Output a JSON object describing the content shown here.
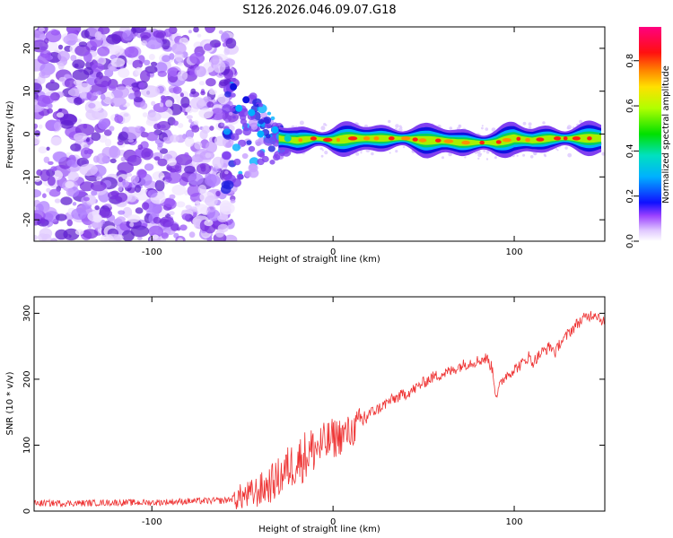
{
  "title": "S126.2026.046.09.07.G18",
  "chart_data": [
    {
      "type": "heatmap",
      "name": "spectrogram",
      "xlabel": "Height of straight line (km)",
      "ylabel": "Frequency (Hz)",
      "xlim": [
        -165,
        150
      ],
      "ylim": [
        -25,
        25
      ],
      "xticks": [
        -100,
        0,
        100
      ],
      "yticks": [
        -20,
        -10,
        0,
        10,
        20
      ],
      "ridge": {
        "x": [
          -30,
          -20,
          -10,
          0,
          10,
          20,
          30,
          40,
          50,
          60,
          70,
          80,
          90,
          100,
          110,
          120,
          130,
          140,
          148
        ],
        "freq": [
          -1,
          -1.5,
          -1,
          -1.5,
          -1,
          -1,
          -1,
          -1,
          -1.5,
          -1.5,
          -2,
          -2,
          -2,
          -1,
          -1.5,
          -1,
          -1,
          -1,
          -1
        ]
      },
      "colorbar": {
        "label": "Normalized spectral amplitude",
        "ticks": [
          0.0,
          0.2,
          0.4,
          0.6,
          0.8
        ],
        "range": [
          0,
          0.95
        ]
      }
    },
    {
      "type": "line",
      "name": "snr",
      "xlabel": "Height of straight line (km)",
      "ylabel": "SNR (10 * v/v)",
      "xlim": [
        -165,
        150
      ],
      "ylim": [
        0,
        325
      ],
      "xticks": [
        -100,
        0,
        100
      ],
      "yticks": [
        0,
        100,
        200,
        300
      ],
      "color": "#ee3333",
      "series": [
        {
          "name": "SNR",
          "x": [
            -165,
            -140,
            -120,
            -100,
            -80,
            -60,
            -50,
            -45,
            -40,
            -35,
            -30,
            -25,
            -20,
            -15,
            -10,
            -5,
            0,
            5,
            10,
            15,
            20,
            25,
            30,
            35,
            40,
            45,
            50,
            55,
            60,
            65,
            70,
            75,
            80,
            85,
            88,
            90,
            93,
            95,
            100,
            105,
            108,
            110,
            115,
            120,
            123,
            125,
            128,
            130,
            135,
            140,
            145,
            150
          ],
          "y": [
            12,
            12,
            13,
            13,
            15,
            16,
            22,
            25,
            32,
            40,
            50,
            65,
            75,
            85,
            95,
            100,
            110,
            115,
            120,
            135,
            148,
            155,
            165,
            172,
            178,
            185,
            195,
            203,
            208,
            212,
            220,
            225,
            228,
            232,
            215,
            175,
            195,
            205,
            215,
            225,
            235,
            225,
            240,
            250,
            240,
            255,
            262,
            270,
            285,
            295,
            300,
            285
          ]
        }
      ]
    }
  ]
}
